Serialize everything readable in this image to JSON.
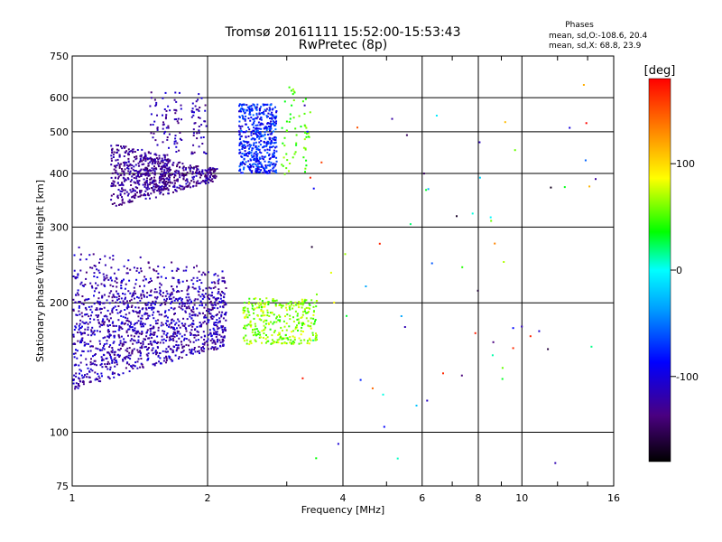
{
  "chart_data": {
    "type": "scatter",
    "title": "Tromsø 20161111 15:52:00-15:53:43",
    "subtitle": "RwPretec (8p)",
    "stats": {
      "heading": "Phases",
      "line1": "mean, sd,O:-108.6, 20.4",
      "line2": "mean, sd,X:  68.8, 23.9"
    },
    "xlabel": "Frequency [MHz]",
    "ylabel": "Stationary phase Virtual Height [km]",
    "xscale": "log",
    "yscale": "log",
    "xlim": [
      1,
      16
    ],
    "ylim": [
      75,
      750
    ],
    "xticks": [
      1,
      2,
      4,
      6,
      8,
      10,
      16
    ],
    "yticks": [
      75,
      100,
      200,
      300,
      400,
      500,
      600,
      750
    ],
    "grid": true,
    "colorbar": {
      "label": "[deg]",
      "range": [
        -180,
        180
      ],
      "ticks": [
        100,
        0,
        -100
      ],
      "placement": "right"
    },
    "clusters": [
      {
        "name": "O-lower",
        "x": [
          1.0,
          2.2
        ],
        "y_bottom_start": 125,
        "y_bottom_end": 158,
        "y_top": [
          205,
          275
        ],
        "phase": [
          -140,
          -95
        ],
        "n": 1400
      },
      {
        "name": "O-upper-a",
        "x": [
          1.22,
          1.65
        ],
        "y": [
          330,
          470
        ],
        "phase": [
          -145,
          -110
        ],
        "n": 420
      },
      {
        "name": "O-upper-b",
        "x": [
          1.45,
          2.1
        ],
        "y": [
          345,
          440
        ],
        "phase": [
          -150,
          -105
        ],
        "n": 300
      },
      {
        "name": "O-upper-spikes",
        "x": [
          1.5,
          2.0
        ],
        "y": [
          440,
          620
        ],
        "phase": [
          -140,
          -100
        ],
        "n": 120
      },
      {
        "name": "O-cusp",
        "x": [
          2.35,
          2.85
        ],
        "y": [
          400,
          580
        ],
        "phase": [
          -110,
          -50
        ],
        "n": 520
      },
      {
        "name": "X-lower",
        "x": [
          2.4,
          3.5
        ],
        "y": [
          160,
          205
        ],
        "phase": [
          40,
          85
        ],
        "n": 330
      },
      {
        "name": "X-upper",
        "x": [
          2.9,
          3.4
        ],
        "y": [
          395,
          640
        ],
        "phase": [
          30,
          70
        ],
        "n": 60
      },
      {
        "name": "scatter",
        "x": [
          3.2,
          15.5
        ],
        "y": [
          78,
          650
        ],
        "phase": [
          -180,
          180
        ],
        "n": 70
      }
    ]
  }
}
